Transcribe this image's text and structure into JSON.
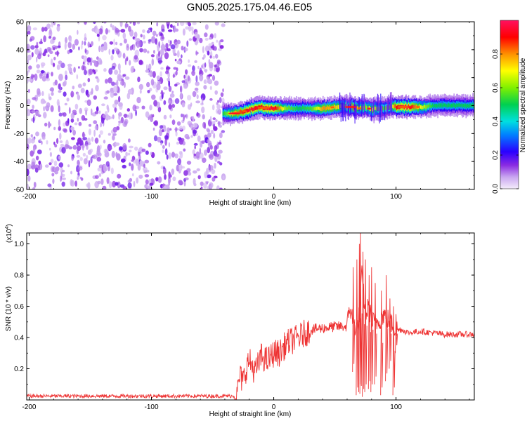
{
  "title": "GN05.2025.175.04.46.E05",
  "chart_data": [
    {
      "type": "heatmap",
      "xlabel": "Height of straight line (km)",
      "ylabel": "Frequency (Hz)",
      "xlim": [
        -202,
        164
      ],
      "ylim": [
        -60,
        60
      ],
      "x_ticks": [
        -200,
        -100,
        0,
        100
      ],
      "y_ticks": [
        -60,
        -40,
        -20,
        0,
        20,
        40,
        60
      ],
      "noise_region": {
        "x": [
          -202,
          -41
        ],
        "y": [
          -60,
          60
        ],
        "amplitude": [
          0.05,
          0.25
        ]
      },
      "band": {
        "x": [
          -42,
          -35,
          -28,
          -20,
          -12,
          -5,
          0,
          10,
          20,
          30,
          40,
          50,
          55,
          60,
          65,
          70,
          75,
          80,
          85,
          90,
          95,
          100,
          105,
          110,
          120,
          130,
          140,
          150,
          164
        ],
        "center_freq": [
          -6,
          -6,
          -5,
          -3,
          -1,
          -2,
          -2,
          -2,
          -2,
          -2,
          -2,
          -1,
          0,
          -1,
          -1,
          -2,
          -1,
          -3,
          -2,
          -2,
          -1,
          -1,
          -1,
          -1,
          -1,
          0,
          0,
          0,
          0
        ],
        "peak_amplitude": [
          0.5,
          0.7,
          0.85,
          0.95,
          0.9,
          0.95,
          0.95,
          0.6,
          0.5,
          0.55,
          0.8,
          0.75,
          0.7,
          0.6,
          0.85,
          0.65,
          0.6,
          0.75,
          0.6,
          0.55,
          0.6,
          0.9,
          0.95,
          0.95,
          0.7,
          0.5,
          0.5,
          0.5,
          0.5
        ]
      },
      "colorbar": {
        "label": "Normalized spectral amplitude",
        "range": [
          0,
          1
        ],
        "ticks": [
          "0.0",
          "0.2",
          "0.4",
          "0.6",
          "0.8"
        ]
      }
    },
    {
      "type": "line",
      "xlabel": "Height of straight line (km)",
      "ylabel": "SNR (10 * v/v)",
      "scale_label": "(x10",
      "scale_exp": "4",
      "scale_close": ")",
      "xlim": [
        -202,
        164
      ],
      "ylim": [
        0,
        1.07
      ],
      "x_ticks": [
        -200,
        -100,
        0,
        100
      ],
      "y_ticks": [
        "0.2",
        "0.4",
        "0.6",
        "0.8",
        "1.0"
      ],
      "color": "#ee3333",
      "series": [
        {
          "x": [
            -202,
            -150,
            -100,
            -50,
            -30,
            -28,
            -25,
            -22,
            -20,
            -15,
            -10,
            -5,
            0,
            5,
            10,
            20,
            30,
            40,
            50,
            55,
            60,
            62,
            65,
            68,
            70,
            72,
            75,
            78,
            80,
            85,
            90,
            95,
            100,
            105,
            110,
            120,
            130,
            140,
            150,
            164
          ],
          "y": [
            0.025,
            0.025,
            0.025,
            0.025,
            0.025,
            0.15,
            0.12,
            0.22,
            0.25,
            0.18,
            0.28,
            0.25,
            0.3,
            0.3,
            0.36,
            0.4,
            0.45,
            0.46,
            0.47,
            0.47,
            0.47,
            0.6,
            0.5,
            0.45,
            0.55,
            0.8,
            0.55,
            0.6,
            0.5,
            0.5,
            0.55,
            0.5,
            0.45,
            0.45,
            0.43,
            0.44,
            0.43,
            0.42,
            0.42,
            0.42
          ]
        }
      ],
      "spikes": [
        {
          "x": 65,
          "min": 0.18,
          "max": 0.85
        },
        {
          "x": 68,
          "min": 0.03,
          "max": 0.9
        },
        {
          "x": 70,
          "min": 0.05,
          "max": 1.0
        },
        {
          "x": 71,
          "min": 0.04,
          "max": 1.07
        },
        {
          "x": 73,
          "min": 0.02,
          "max": 0.95
        },
        {
          "x": 75,
          "min": 0.05,
          "max": 0.9
        },
        {
          "x": 78,
          "min": 0.07,
          "max": 0.8
        },
        {
          "x": 80,
          "min": 0.05,
          "max": 0.85
        },
        {
          "x": 83,
          "min": 0.1,
          "max": 0.75
        },
        {
          "x": 88,
          "min": 0.03,
          "max": 0.7
        },
        {
          "x": 92,
          "min": 0.12,
          "max": 0.8
        },
        {
          "x": 95,
          "min": 0.2,
          "max": 0.65
        },
        {
          "x": 98,
          "min": 0.03,
          "max": 0.6
        },
        {
          "x": 100,
          "min": 0.3,
          "max": 0.55
        }
      ]
    }
  ]
}
